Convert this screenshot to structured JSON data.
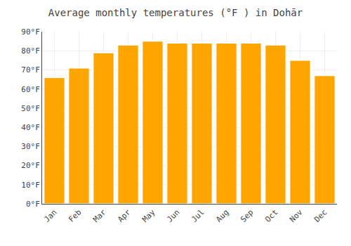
{
  "chart_data": {
    "type": "bar",
    "title": "Average monthly temperatures (°F ) in Dohār",
    "categories": [
      "Jan",
      "Feb",
      "Mar",
      "Apr",
      "May",
      "Jun",
      "Jul",
      "Aug",
      "Sep",
      "Oct",
      "Nov",
      "Dec"
    ],
    "values": [
      66,
      71,
      79,
      83,
      85,
      84,
      84,
      84,
      84,
      83,
      75,
      67
    ],
    "color": "#FFA500",
    "ylim": [
      0,
      90
    ],
    "yticks": [
      {
        "value": 0,
        "label": "0°F"
      },
      {
        "value": 10,
        "label": "10°F"
      },
      {
        "value": 20,
        "label": "20°F"
      },
      {
        "value": 30,
        "label": "30°F"
      },
      {
        "value": 40,
        "label": "40°F"
      },
      {
        "value": 50,
        "label": "50°F"
      },
      {
        "value": 60,
        "label": "60°F"
      },
      {
        "value": 70,
        "label": "70°F"
      },
      {
        "value": 80,
        "label": "80°F"
      },
      {
        "value": 90,
        "label": "90°F"
      }
    ],
    "grid": true
  }
}
